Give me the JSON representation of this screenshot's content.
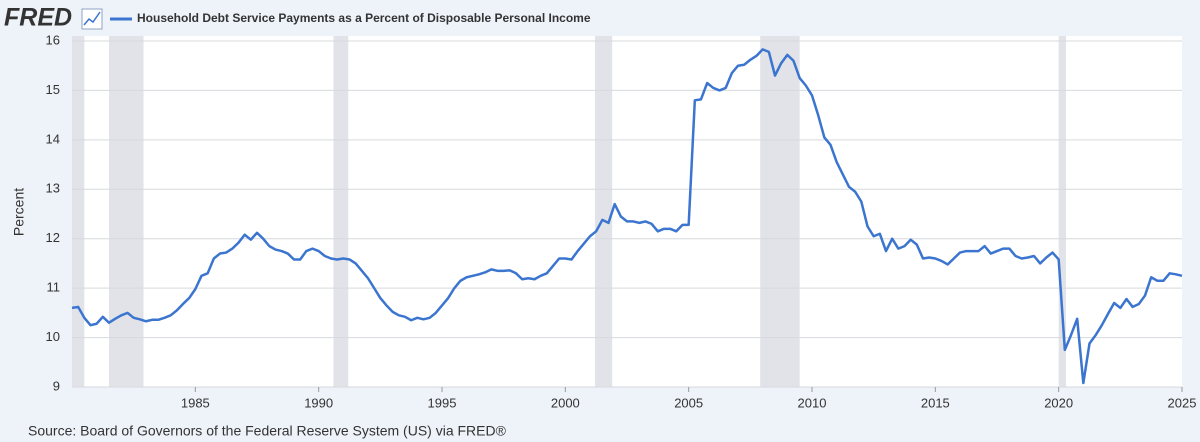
{
  "chart_data": {
    "type": "line",
    "logo": "FRED",
    "title": "Household Debt Service Payments as a Percent of Disposable Personal Income",
    "ylabel": "Percent",
    "source": "Source: Board of Governors of the Federal Reserve System (US) via FRED®",
    "xlim": [
      1980,
      2025
    ],
    "ylim": [
      9,
      16
    ],
    "xticks": [
      1985,
      1990,
      1995,
      2000,
      2005,
      2010,
      2015,
      2020,
      2025
    ],
    "yticks": [
      9,
      10,
      11,
      12,
      13,
      14,
      15,
      16
    ],
    "grid": true,
    "recession_color": "#e1e3e8",
    "recessions": [
      [
        1980,
        1980.5
      ],
      [
        1981.5,
        1982.9
      ],
      [
        1990.6,
        1991.2
      ],
      [
        2001.2,
        2001.9
      ],
      [
        2007.9,
        2009.5
      ],
      [
        2020,
        2020.3
      ]
    ],
    "x": [
      1980,
      1980.25,
      1980.5,
      1980.75,
      1981,
      1981.25,
      1981.5,
      1981.75,
      1982,
      1982.25,
      1982.5,
      1982.75,
      1983,
      1983.25,
      1983.5,
      1983.75,
      1984,
      1984.25,
      1984.5,
      1984.75,
      1985,
      1985.25,
      1985.5,
      1985.75,
      1986,
      1986.25,
      1986.5,
      1986.75,
      1987,
      1987.25,
      1987.5,
      1987.75,
      1988,
      1988.25,
      1988.5,
      1988.75,
      1989,
      1989.25,
      1989.5,
      1989.75,
      1990,
      1990.25,
      1990.5,
      1990.75,
      1991,
      1991.25,
      1991.5,
      1991.75,
      1992,
      1992.25,
      1992.5,
      1992.75,
      1993,
      1993.25,
      1993.5,
      1993.75,
      1994,
      1994.25,
      1994.5,
      1994.75,
      1995,
      1995.25,
      1995.5,
      1995.75,
      1996,
      1996.25,
      1996.5,
      1996.75,
      1997,
      1997.25,
      1997.5,
      1997.75,
      1998,
      1998.25,
      1998.5,
      1998.75,
      1999,
      1999.25,
      1999.5,
      1999.75,
      2000,
      2000.25,
      2000.5,
      2000.75,
      2001,
      2001.25,
      2001.5,
      2001.75,
      2002,
      2002.25,
      2002.5,
      2002.75,
      2003,
      2003.25,
      2003.5,
      2003.75,
      2004,
      2004.25,
      2004.5,
      2004.75,
      2005,
      2005.25,
      2005.5,
      2005.75,
      2006,
      2006.25,
      2006.5,
      2006.75,
      2007,
      2007.25,
      2007.5,
      2007.75,
      2008,
      2008.25,
      2008.5,
      2008.75,
      2009,
      2009.25,
      2009.5,
      2009.75,
      2010,
      2010.25,
      2010.5,
      2010.75,
      2011,
      2011.25,
      2011.5,
      2011.75,
      2012,
      2012.25,
      2012.5,
      2012.75,
      2013,
      2013.25,
      2013.5,
      2013.75,
      2014,
      2014.25,
      2014.5,
      2014.75,
      2015,
      2015.25,
      2015.5,
      2015.75,
      2016,
      2016.25,
      2016.5,
      2016.75,
      2017,
      2017.25,
      2017.5,
      2017.75,
      2018,
      2018.25,
      2018.5,
      2018.75,
      2019,
      2019.25,
      2019.5,
      2019.75,
      2020,
      2020.25,
      2020.5,
      2020.75,
      2021,
      2021.25,
      2021.5,
      2021.75,
      2022,
      2022.25,
      2022.5,
      2022.75,
      2023,
      2023.25,
      2023.5,
      2023.75,
      2024,
      2024.25,
      2024.5,
      2024.75,
      2025
    ],
    "series": [
      {
        "name": "Household Debt Service Payments as a Percent of Disposable Personal Income",
        "color": "#3b75cf",
        "values": [
          10.6,
          10.62,
          10.4,
          10.25,
          10.28,
          10.42,
          10.3,
          10.38,
          10.45,
          10.5,
          10.4,
          10.37,
          10.33,
          10.36,
          10.36,
          10.4,
          10.45,
          10.55,
          10.68,
          10.8,
          10.98,
          11.25,
          11.3,
          11.6,
          11.7,
          11.72,
          11.8,
          11.92,
          12.08,
          11.98,
          12.12,
          12.0,
          11.85,
          11.78,
          11.75,
          11.7,
          11.58,
          11.58,
          11.75,
          11.8,
          11.75,
          11.65,
          11.6,
          11.58,
          11.6,
          11.58,
          11.5,
          11.35,
          11.2,
          11.0,
          10.8,
          10.65,
          10.52,
          10.45,
          10.42,
          10.35,
          10.4,
          10.37,
          10.4,
          10.5,
          10.65,
          10.8,
          11.0,
          11.15,
          11.22,
          11.25,
          11.28,
          11.32,
          11.38,
          11.35,
          11.35,
          11.36,
          11.3,
          11.18,
          11.2,
          11.18,
          11.25,
          11.3,
          11.45,
          11.6,
          11.6,
          11.58,
          11.75,
          11.9,
          12.05,
          12.15,
          12.38,
          12.32,
          12.7,
          12.45,
          12.35,
          12.35,
          12.32,
          12.35,
          12.3,
          12.15,
          12.2,
          12.2,
          12.15,
          12.28,
          12.28,
          14.8,
          14.82,
          15.15,
          15.05,
          15.0,
          15.05,
          15.35,
          15.5,
          15.52,
          15.62,
          15.7,
          15.83,
          15.78,
          15.3,
          15.55,
          15.72,
          15.6,
          15.25,
          15.1,
          14.9,
          14.5,
          14.05,
          13.9,
          13.55,
          13.3,
          13.05,
          12.95,
          12.75,
          12.25,
          12.05,
          12.1,
          11.75,
          12.0,
          11.8,
          11.85,
          11.98,
          11.88,
          11.6,
          11.62,
          11.6,
          11.55,
          11.48,
          11.6,
          11.72,
          11.75,
          11.75,
          11.75,
          11.85,
          11.7,
          11.75,
          11.8,
          11.8,
          11.65,
          11.6,
          11.62,
          11.65,
          11.5,
          11.62,
          11.72,
          11.58,
          9.75,
          10.05,
          10.38,
          9.08,
          9.88,
          10.05,
          10.25,
          10.48,
          10.7,
          10.6,
          10.78,
          10.62,
          10.68,
          10.85,
          11.22,
          11.15,
          11.15,
          11.3,
          11.28,
          11.25
        ]
      }
    ]
  }
}
